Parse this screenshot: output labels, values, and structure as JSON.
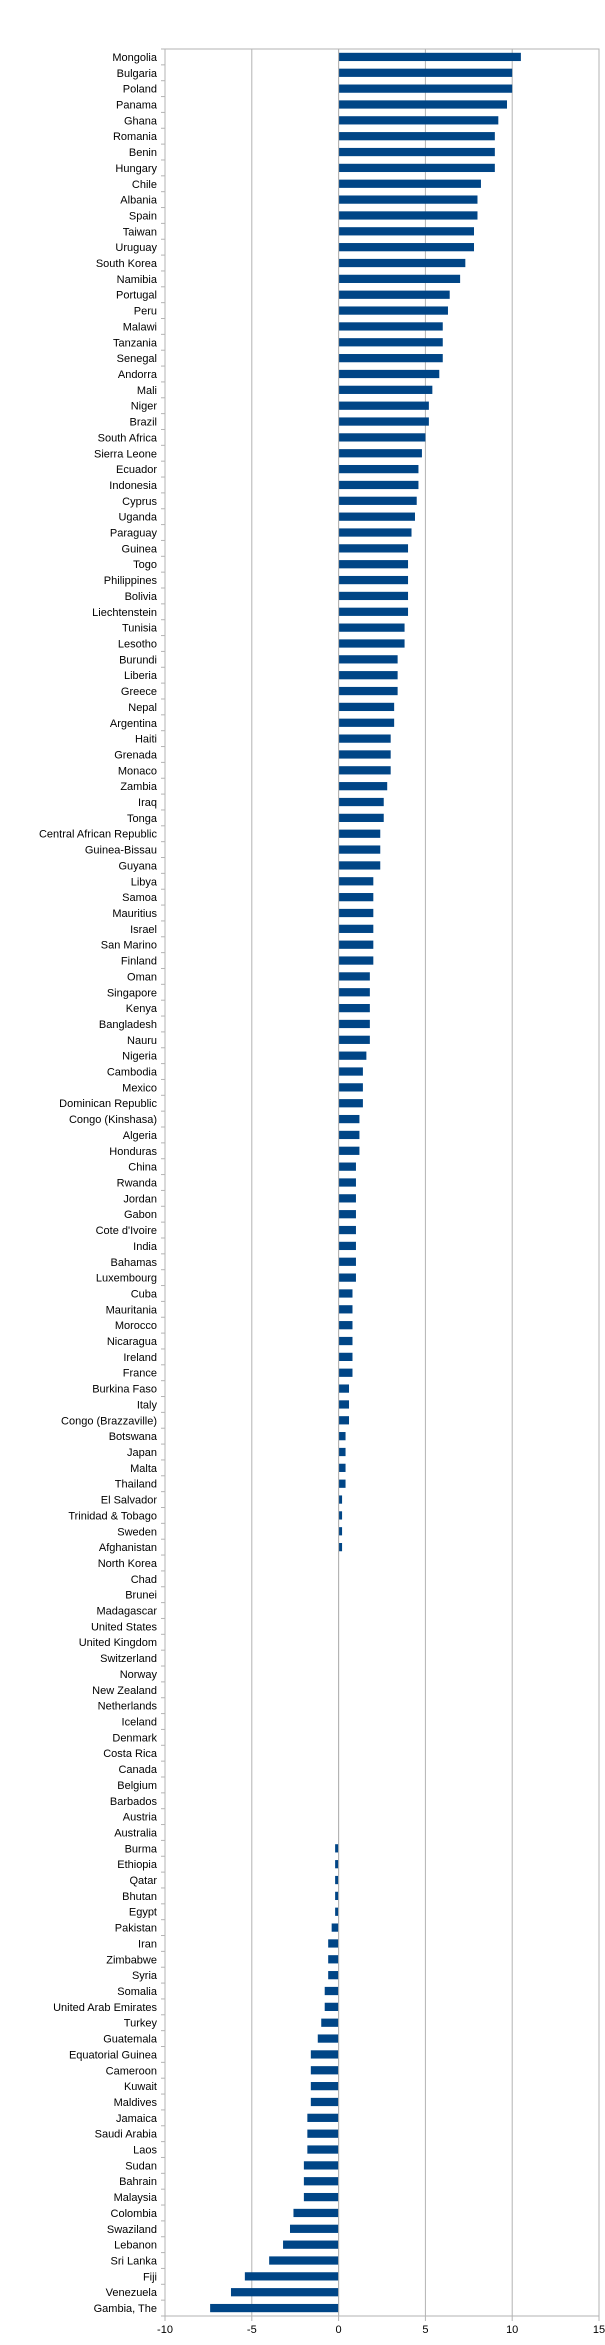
{
  "chart_data": {
    "type": "bar",
    "orientation": "horizontal",
    "xlim": [
      -10,
      15
    ],
    "x_ticks": [
      -10,
      -5,
      0,
      5,
      10,
      15
    ],
    "grid": "vertical",
    "bar_color": "#004586",
    "categories": [
      "Mongolia",
      "Bulgaria",
      "Poland",
      "Panama",
      "Ghana",
      "Romania",
      "Benin",
      "Hungary",
      "Chile",
      "Albania",
      "Spain",
      "Taiwan",
      "Uruguay",
      "South Korea",
      "Namibia",
      "Portugal",
      "Peru",
      "Malawi",
      "Tanzania",
      "Senegal",
      "Andorra",
      "Mali",
      "Niger",
      "Brazil",
      "South Africa",
      "Sierra Leone",
      "Ecuador",
      "Indonesia",
      "Cyprus",
      "Uganda",
      "Paraguay",
      "Guinea",
      "Togo",
      "Philippines",
      "Bolivia",
      "Liechtenstein",
      "Tunisia",
      "Lesotho",
      "Burundi",
      "Liberia",
      "Greece",
      "Nepal",
      "Argentina",
      "Haiti",
      "Grenada",
      "Monaco",
      "Zambia",
      "Iraq",
      "Tonga",
      "Central African Republic",
      "Guinea-Bissau",
      "Guyana",
      "Libya",
      "Samoa",
      "Mauritius",
      "Israel",
      "San Marino",
      "Finland",
      "Oman",
      "Singapore",
      "Kenya",
      "Bangladesh",
      "Nauru",
      "Nigeria",
      "Cambodia",
      "Mexico",
      "Dominican Republic",
      "Congo (Kinshasa)",
      "Algeria",
      "Honduras",
      "China",
      "Rwanda",
      "Jordan",
      "Gabon",
      "Cote d'Ivoire",
      "India",
      "Bahamas",
      "Luxembourg",
      "Cuba",
      "Mauritania",
      "Morocco",
      "Nicaragua",
      "Ireland",
      "France",
      "Burkina Faso",
      "Italy",
      "Congo (Brazzaville)",
      "Botswana",
      "Japan",
      "Malta",
      "Thailand",
      "El Salvador",
      "Trinidad & Tobago",
      "Sweden",
      "Afghanistan",
      "North Korea",
      "Chad",
      "Brunei",
      "Madagascar",
      "United States",
      "United Kingdom",
      "Switzerland",
      "Norway",
      "New Zealand",
      "Netherlands",
      "Iceland",
      "Denmark",
      "Costa Rica",
      "Canada",
      "Belgium",
      "Barbados",
      "Austria",
      "Australia",
      "Burma",
      "Ethiopia",
      "Qatar",
      "Bhutan",
      "Egypt",
      "Pakistan",
      "Iran",
      "Zimbabwe",
      "Syria",
      "Somalia",
      "United Arab Emirates",
      "Turkey",
      "Guatemala",
      "Equatorial Guinea",
      "Cameroon",
      "Kuwait",
      "Maldives",
      "Jamaica",
      "Saudi Arabia",
      "Laos",
      "Sudan",
      "Bahrain",
      "Malaysia",
      "Colombia",
      "Swaziland",
      "Lebanon",
      "Sri Lanka",
      "Fiji",
      "Venezuela",
      "Gambia, The"
    ],
    "values": [
      10.5,
      10.0,
      10.0,
      9.7,
      9.2,
      9.0,
      9.0,
      9.0,
      8.2,
      8.0,
      8.0,
      7.8,
      7.8,
      7.3,
      7.0,
      6.4,
      6.3,
      6.0,
      6.0,
      6.0,
      5.8,
      5.4,
      5.2,
      5.2,
      5.0,
      4.8,
      4.6,
      4.6,
      4.5,
      4.4,
      4.2,
      4.0,
      4.0,
      4.0,
      4.0,
      4.0,
      3.8,
      3.8,
      3.4,
      3.4,
      3.4,
      3.2,
      3.2,
      3.0,
      3.0,
      3.0,
      2.8,
      2.6,
      2.6,
      2.4,
      2.4,
      2.4,
      2.0,
      2.0,
      2.0,
      2.0,
      2.0,
      2.0,
      1.8,
      1.8,
      1.8,
      1.8,
      1.8,
      1.6,
      1.4,
      1.4,
      1.4,
      1.2,
      1.2,
      1.2,
      1.0,
      1.0,
      1.0,
      1.0,
      1.0,
      1.0,
      1.0,
      1.0,
      0.8,
      0.8,
      0.8,
      0.8,
      0.8,
      0.8,
      0.6,
      0.6,
      0.6,
      0.4,
      0.4,
      0.4,
      0.4,
      0.2,
      0.2,
      0.2,
      0.2,
      0,
      0,
      0,
      0,
      0,
      0,
      0,
      0,
      0,
      0,
      0,
      0,
      0,
      0,
      0,
      0,
      0,
      0,
      -0.2,
      -0.2,
      -0.2,
      -0.2,
      -0.2,
      -0.4,
      -0.6,
      -0.6,
      -0.6,
      -0.8,
      -0.8,
      -1.0,
      -1.2,
      -1.6,
      -1.6,
      -1.6,
      -1.6,
      -1.8,
      -1.8,
      -1.8,
      -2.0,
      -2.0,
      -2.0,
      -2.6,
      -2.8,
      -3.2,
      -4.0,
      -5.4,
      -6.2,
      -7.4
    ]
  }
}
